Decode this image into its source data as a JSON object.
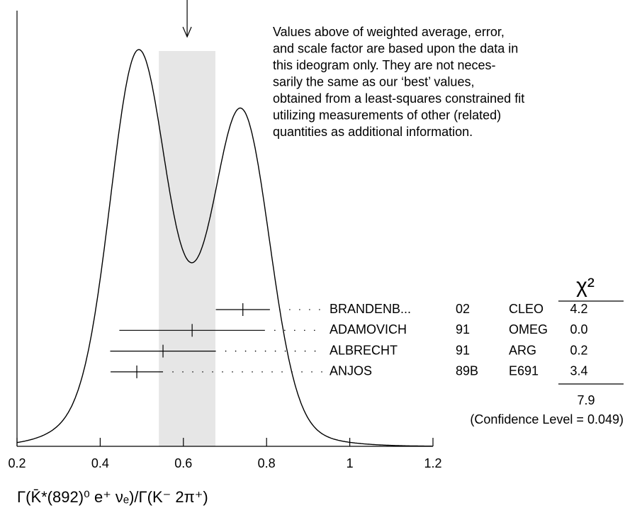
{
  "chart_data": {
    "type": "ideogram",
    "xlim": [
      0.2,
      1.2
    ],
    "xticks": [
      0.2,
      0.4,
      0.6,
      0.8,
      1,
      1.2
    ],
    "x_label": "Γ(K̄*(892)⁰ e⁺ νₑ)/Γ(K⁻ 2π⁺)",
    "average": 0.609,
    "average_error": 0.068,
    "band_color": "#e6e6e6",
    "note": [
      "Values above of weighted average, error,",
      "and scale factor are based upon the data in",
      "this ideogram only.  They are not neces-",
      "sarily the same as our ‘best’ values,",
      "obtained from a least-squares constrained fit",
      "utilizing measurements of other (related)",
      "quantities as additional information."
    ],
    "chi2_header": "χ²",
    "measurements": [
      {
        "name": "BRANDENB...",
        "year": "02",
        "experiment": "CLEO",
        "value": 0.743,
        "error": 0.065,
        "chi2": "4.2"
      },
      {
        "name": "ADAMOVICH",
        "year": "91",
        "experiment": "OMEG",
        "value": 0.621,
        "error": 0.175,
        "chi2": "0.0"
      },
      {
        "name": "ALBRECHT",
        "year": "91",
        "experiment": "ARG",
        "value": 0.551,
        "error": 0.127,
        "chi2": "0.2"
      },
      {
        "name": "ANJOS",
        "year": "89B",
        "experiment": "E691",
        "value": 0.488,
        "error": 0.063,
        "chi2": "3.4"
      }
    ],
    "chi2_total": "7.9",
    "confidence_level": "(Confidence Level = 0.049)"
  }
}
